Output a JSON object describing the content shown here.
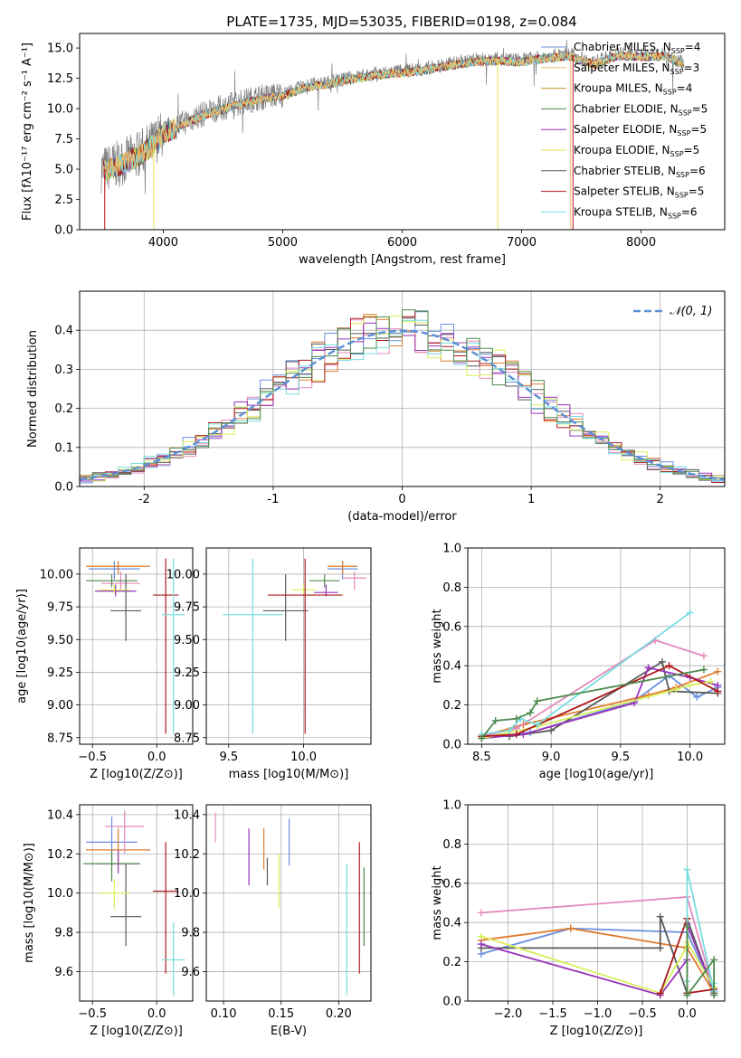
{
  "figure_title": "PLATE=1735, MJD=53035, FIBERID=0198, z=0.084",
  "colors": [
    "#6a8fdf",
    "#e8bf6f",
    "#c99437",
    "#4e8a4e",
    "#9933bb",
    "#e7e648",
    "#555555",
    "#b51414",
    "#7adcde"
  ],
  "series_colors_scatter": [
    "#6a8fdf",
    "#e07b2e",
    "#e389bd",
    "#5a5a5a",
    "#9933bb",
    "#d8ef5a",
    "#ad1a1a",
    "#7adcde",
    "#4e8a4e"
  ],
  "chart_data": [
    {
      "id": "spectrum",
      "type": "line",
      "title": "PLATE=1735, MJD=53035, FIBERID=0198, z=0.084",
      "xlabel": "wavelength [Angstrom, rest frame]",
      "ylabel": "Flux [fλ10⁻¹⁷ erg cm⁻² s⁻¹ A⁻¹]",
      "xlim": [
        3300,
        8700
      ],
      "ylim": [
        0,
        16.2
      ],
      "xticks": [
        4000,
        5000,
        6000,
        7000,
        8000
      ],
      "yticks": [
        0.0,
        2.5,
        5.0,
        7.5,
        10.0,
        12.5,
        15.0
      ],
      "legend_position": "top-right",
      "grid": false,
      "continuum_anchors": {
        "x": [
          3500,
          3650,
          3800,
          3900,
          4000,
          4200,
          4400,
          4600,
          4800,
          5000,
          5200,
          5400,
          5600,
          5800,
          6000,
          6200,
          6400,
          6600,
          6800,
          7000,
          7200,
          7400,
          7600,
          7800,
          8000,
          8200,
          8350
        ],
        "y": [
          5.0,
          5.5,
          6.3,
          7.0,
          8.0,
          9.0,
          9.8,
          10.4,
          10.9,
          11.2,
          11.9,
          12.2,
          12.6,
          12.9,
          13.1,
          13.3,
          13.7,
          14.0,
          14.1,
          14.0,
          14.3,
          14.5,
          13.8,
          14.5,
          14.4,
          14.5,
          13.8
        ]
      },
      "series": [
        {
          "name": "Chabrier MILES, N_SSP=4",
          "label_main": "Chabrier MILES, N",
          "label_sub": "SSP",
          "label_tail": "=4"
        },
        {
          "name": "Salpeter MILES, N_SSP=3",
          "label_main": "Salpeter MILES, N",
          "label_sub": "SSP",
          "label_tail": "=3"
        },
        {
          "name": "Kroupa MILES, N_SSP=4",
          "label_main": "Kroupa MILES, N",
          "label_sub": "SSP",
          "label_tail": "=4"
        },
        {
          "name": "Chabrier ELODIE, N_SSP=5",
          "label_main": "Chabrier ELODIE, N",
          "label_sub": "SSP",
          "label_tail": "=5"
        },
        {
          "name": "Salpeter ELODIE, N_SSP=5",
          "label_main": "Salpeter ELODIE, N",
          "label_sub": "SSP",
          "label_tail": "=5"
        },
        {
          "name": "Kroupa ELODIE, N_SSP=5",
          "label_main": "Kroupa ELODIE, N",
          "label_sub": "SSP",
          "label_tail": "=5"
        },
        {
          "name": "Chabrier STELIB, N_SSP=6",
          "label_main": "Chabrier STELIB, N",
          "label_sub": "SSP",
          "label_tail": "=6"
        },
        {
          "name": "Salpeter STELIB, N_SSP=5",
          "label_main": "Salpeter STELIB, N",
          "label_sub": "SSP",
          "label_tail": "=5"
        },
        {
          "name": "Kroupa STELIB, N_SSP=6",
          "label_main": "Kroupa STELIB, N",
          "label_sub": "SSP",
          "label_tail": "=6"
        }
      ]
    },
    {
      "id": "residuals",
      "type": "line",
      "xlabel": "(data-model)/error",
      "ylabel": "Normed distribution",
      "xlim": [
        -2.5,
        2.5
      ],
      "ylim": [
        0,
        0.5
      ],
      "xticks": [
        -2,
        -1,
        0,
        1,
        2
      ],
      "yticks": [
        0.0,
        0.1,
        0.2,
        0.3,
        0.4
      ],
      "grid": true,
      "legend_position": "top-right",
      "legend_label": "𝒩(0, 1)",
      "reference_curve": {
        "name": "N(0,1)",
        "mean": 0,
        "sigma": 1
      }
    },
    {
      "id": "age-vs-Z",
      "type": "scatter",
      "xlabel": "Z [log10(Z/Z⊙)]",
      "ylabel": "age  [log10(age/yr)]",
      "xlim": [
        -0.6,
        0.28
      ],
      "ylim": [
        8.7,
        10.2
      ],
      "xticks": [
        -0.5,
        0.0
      ],
      "xticklabels": [
        "−0.5",
        "0.0"
      ],
      "yticks": [
        8.75,
        9.0,
        9.25,
        9.5,
        9.75,
        10.0
      ],
      "yticklabels": [
        "8.75",
        "9.00",
        "9.25",
        "9.50",
        "9.75",
        "10.00"
      ],
      "grid": true,
      "points": [
        {
          "x": -0.33,
          "y": 10.04,
          "xerr": 0.2,
          "ylo": 9.96,
          "yhi": 10.1
        },
        {
          "x": -0.3,
          "y": 10.06,
          "xerr": 0.25,
          "ylo": 10.0,
          "yhi": 10.1
        },
        {
          "x": -0.28,
          "y": 9.93,
          "xerr": 0.15,
          "ylo": 9.88,
          "yhi": 10.02
        },
        {
          "x": -0.24,
          "y": 9.72,
          "xerr": 0.12,
          "ylo": 9.49,
          "yhi": 10.0
        },
        {
          "x": -0.32,
          "y": 9.87,
          "xerr": 0.16,
          "ylo": 9.83,
          "yhi": 9.92
        },
        {
          "x": -0.33,
          "y": 9.88,
          "xerr": 0.12,
          "ylo": 9.85,
          "yhi": 9.92
        },
        {
          "x": 0.07,
          "y": 9.84,
          "xerr": 0.1,
          "ylo": 8.78,
          "yhi": 10.12
        },
        {
          "x": 0.13,
          "y": 9.69,
          "xerr": 0.09,
          "ylo": 8.78,
          "yhi": 10.12
        },
        {
          "x": -0.35,
          "y": 9.95,
          "xerr": 0.2,
          "ylo": 9.9,
          "yhi": 10.0
        }
      ]
    },
    {
      "id": "age-vs-mass",
      "type": "scatter",
      "xlabel": "mass [log10(M/M⊙)]",
      "ylabel": "",
      "xlim": [
        9.35,
        10.45
      ],
      "ylim": [
        8.7,
        10.2
      ],
      "xticks": [
        9.5,
        10.0
      ],
      "xticklabels": [
        "9.5",
        "10.0"
      ],
      "yticks": [
        8.75,
        9.0,
        9.25,
        9.5,
        9.75,
        10.0
      ],
      "yticklabels": [
        "8.75",
        "9.00",
        "9.25",
        "9.50",
        "9.75",
        "10.00"
      ],
      "grid": true,
      "points": [
        {
          "x": 10.26,
          "y": 10.04,
          "xerr": 0.1,
          "ylo": 9.96,
          "yhi": 10.1
        },
        {
          "x": 10.26,
          "y": 10.06,
          "xerr": 0.1,
          "ylo": 10.0,
          "yhi": 10.1
        },
        {
          "x": 10.34,
          "y": 9.97,
          "xerr": 0.08,
          "ylo": 9.88,
          "yhi": 10.02
        },
        {
          "x": 9.88,
          "y": 9.72,
          "xerr": 0.15,
          "ylo": 9.49,
          "yhi": 10.0
        },
        {
          "x": 10.15,
          "y": 9.86,
          "xerr": 0.08,
          "ylo": 9.83,
          "yhi": 9.92
        },
        {
          "x": 10.0,
          "y": 9.88,
          "xerr": 0.08,
          "ylo": 9.85,
          "yhi": 9.92
        },
        {
          "x": 10.01,
          "y": 9.84,
          "xerr": 0.25,
          "ylo": 8.78,
          "yhi": 10.12
        },
        {
          "x": 9.66,
          "y": 9.69,
          "xerr": 0.2,
          "ylo": 8.78,
          "yhi": 10.12
        },
        {
          "x": 10.14,
          "y": 9.95,
          "xerr": 0.1,
          "ylo": 9.9,
          "yhi": 10.0
        }
      ]
    },
    {
      "id": "mass-weight-vs-age",
      "type": "line",
      "xlabel": "age  [log10(age/yr)]",
      "ylabel": "mass weight",
      "xlim": [
        8.4,
        10.25
      ],
      "ylim": [
        0,
        1.0
      ],
      "xticks": [
        8.5,
        9.0,
        9.5,
        10.0
      ],
      "xticklabels": [
        "8.5",
        "9.0",
        "9.5",
        "10.0"
      ],
      "yticks": [
        0.0,
        0.2,
        0.4,
        0.6,
        0.8,
        1.0
      ],
      "yticklabels": [
        "0.0",
        "0.2",
        "0.4",
        "0.6",
        "0.8",
        "1.0"
      ],
      "grid": true,
      "series": [
        {
          "x": [
            8.5,
            8.85,
            9.6,
            9.85,
            10.05,
            10.2
          ],
          "y": [
            0.03,
            0.06,
            0.22,
            0.35,
            0.24,
            0.29
          ]
        },
        {
          "x": [
            8.5,
            8.8,
            9.7,
            9.9,
            10.2
          ],
          "y": [
            0.04,
            0.1,
            0.25,
            0.29,
            0.37
          ]
        },
        {
          "x": [
            8.5,
            8.75,
            9.75,
            10.1
          ],
          "y": [
            0.04,
            0.08,
            0.53,
            0.45
          ]
        },
        {
          "x": [
            8.7,
            9.0,
            9.8,
            9.85,
            10.2
          ],
          "y": [
            0.04,
            0.07,
            0.42,
            0.27,
            0.26
          ]
        },
        {
          "x": [
            8.5,
            8.8,
            9.6,
            9.7,
            10.0,
            10.2
          ],
          "y": [
            0.03,
            0.05,
            0.21,
            0.39,
            0.34,
            0.3
          ]
        },
        {
          "x": [
            8.5,
            8.9,
            9.9,
            10.0,
            10.15
          ],
          "y": [
            0.03,
            0.09,
            0.28,
            0.3,
            0.32
          ]
        },
        {
          "x": [
            8.5,
            8.75,
            9.85,
            10.2
          ],
          "y": [
            0.04,
            0.05,
            0.4,
            0.27
          ]
        },
        {
          "x": [
            8.5,
            8.7,
            8.78,
            8.9,
            10.0
          ],
          "y": [
            0.05,
            0.07,
            0.13,
            0.1,
            0.67
          ]
        },
        {
          "x": [
            8.5,
            8.6,
            8.75,
            8.85,
            8.9,
            10.1
          ],
          "y": [
            0.03,
            0.12,
            0.13,
            0.16,
            0.22,
            0.38
          ]
        }
      ]
    },
    {
      "id": "mass-vs-Z",
      "type": "scatter",
      "xlabel": "Z [log10(Z/Z⊙)]",
      "ylabel": "mass [log10(M/M⊙)]",
      "xlim": [
        -0.6,
        0.28
      ],
      "ylim": [
        9.45,
        10.45
      ],
      "xticks": [
        -0.5,
        0.0
      ],
      "xticklabels": [
        "−0.5",
        "0.0"
      ],
      "yticks": [
        9.6,
        9.8,
        10.0,
        10.2,
        10.4
      ],
      "yticklabels": [
        "9.6",
        "9.8",
        "10.0",
        "10.2",
        "10.4"
      ],
      "grid": true,
      "points": [
        {
          "x": -0.35,
          "y": 10.26,
          "xerr": 0.2,
          "ylo": 10.14,
          "yhi": 10.39
        },
        {
          "x": -0.3,
          "y": 10.22,
          "xerr": 0.25,
          "ylo": 10.12,
          "yhi": 10.33
        },
        {
          "x": -0.25,
          "y": 10.34,
          "xerr": 0.15,
          "ylo": 10.2,
          "yhi": 10.42
        },
        {
          "x": -0.24,
          "y": 9.88,
          "xerr": 0.12,
          "ylo": 9.73,
          "yhi": 10.15
        },
        {
          "x": -0.3,
          "y": 10.15,
          "xerr": 0.16,
          "ylo": 10.1,
          "yhi": 10.22
        },
        {
          "x": -0.33,
          "y": 10.0,
          "xerr": 0.12,
          "ylo": 9.92,
          "yhi": 10.07
        },
        {
          "x": 0.07,
          "y": 10.01,
          "xerr": 0.1,
          "ylo": 9.59,
          "yhi": 10.26
        },
        {
          "x": 0.13,
          "y": 9.66,
          "xerr": 0.09,
          "ylo": 9.48,
          "yhi": 9.85
        },
        {
          "x": -0.35,
          "y": 10.15,
          "xerr": 0.22,
          "ylo": 10.06,
          "yhi": 10.22
        }
      ]
    },
    {
      "id": "mass-vs-EBV",
      "type": "scatter",
      "xlabel": "E(B-V)",
      "ylabel": "",
      "xlim": [
        0.085,
        0.228
      ],
      "ylim": [
        9.45,
        10.45
      ],
      "xticks": [
        0.1,
        0.15,
        0.2
      ],
      "xticklabels": [
        "0.10",
        "0.15",
        "0.20"
      ],
      "yticks": [
        9.6,
        9.8,
        10.0,
        10.2,
        10.4
      ],
      "yticklabels": [
        "9.6",
        "9.8",
        "10.0",
        "10.2",
        "10.4"
      ],
      "grid": true,
      "points": [
        {
          "x": 0.157,
          "y": 10.26,
          "ylo": 10.14,
          "yhi": 10.38
        },
        {
          "x": 0.135,
          "y": 10.22,
          "ylo": 10.12,
          "yhi": 10.33
        },
        {
          "x": 0.093,
          "y": 10.34,
          "ylo": 10.26,
          "yhi": 10.41
        },
        {
          "x": 0.138,
          "y": 10.1,
          "ylo": 10.04,
          "yhi": 10.18
        },
        {
          "x": 0.122,
          "y": 10.18,
          "ylo": 10.04,
          "yhi": 10.33
        },
        {
          "x": 0.148,
          "y": 10.06,
          "ylo": 9.92,
          "yhi": 10.2
        },
        {
          "x": 0.218,
          "y": 10.0,
          "ylo": 9.59,
          "yhi": 10.26
        },
        {
          "x": 0.207,
          "y": 9.85,
          "ylo": 9.48,
          "yhi": 10.15
        },
        {
          "x": 0.222,
          "y": 9.93,
          "ylo": 9.73,
          "yhi": 10.13
        }
      ]
    },
    {
      "id": "mass-weight-vs-Z",
      "type": "line",
      "xlabel": "Z [log10(Z/Z⊙)]",
      "ylabel": "mass weight",
      "xlim": [
        -2.45,
        0.42
      ],
      "ylim": [
        0,
        1.0
      ],
      "xticks": [
        -2.0,
        -1.5,
        -1.0,
        -0.5,
        0.0
      ],
      "xticklabels": [
        "−2.0",
        "−1.5",
        "−1.0",
        "−0.5",
        "0.0"
      ],
      "yticks": [
        0.0,
        0.2,
        0.4,
        0.6,
        0.8,
        1.0
      ],
      "yticklabels": [
        "0.0",
        "0.2",
        "0.4",
        "0.6",
        "0.8",
        "1.0"
      ],
      "grid": true,
      "series": [
        {
          "x": [
            -2.3,
            -1.3,
            0.0,
            0.3,
            0.3
          ],
          "y": [
            0.24,
            0.37,
            0.35,
            0.05,
            0.07
          ]
        },
        {
          "x": [
            -2.3,
            -1.3,
            0.0,
            0.3
          ],
          "y": [
            0.31,
            0.37,
            0.27,
            0.04
          ]
        },
        {
          "x": [
            -2.3,
            0.0,
            0.3
          ],
          "y": [
            0.45,
            0.53,
            0.05
          ]
        },
        {
          "x": [
            -2.3,
            -0.3,
            -0.3,
            0.0,
            0.0,
            0.3
          ],
          "y": [
            0.27,
            0.27,
            0.43,
            0.04,
            0.42,
            0.04
          ]
        },
        {
          "x": [
            -2.3,
            -0.3,
            0.0,
            0.0,
            0.3
          ],
          "y": [
            0.29,
            0.03,
            0.21,
            0.39,
            0.05
          ]
        },
        {
          "x": [
            -2.3,
            -0.3,
            0.0,
            0.0,
            0.3
          ],
          "y": [
            0.33,
            0.04,
            0.28,
            0.3,
            0.07
          ]
        },
        {
          "x": [
            -0.3,
            0.0,
            0.0,
            0.3
          ],
          "y": [
            0.04,
            0.42,
            0.04,
            0.06
          ]
        },
        {
          "x": [
            0.0,
            0.0,
            0.3,
            0.3
          ],
          "y": [
            0.1,
            0.67,
            0.05,
            0.09
          ]
        },
        {
          "x": [
            0.0,
            0.0,
            0.3,
            0.3
          ],
          "y": [
            0.38,
            0.03,
            0.21,
            0.03
          ]
        }
      ]
    }
  ]
}
